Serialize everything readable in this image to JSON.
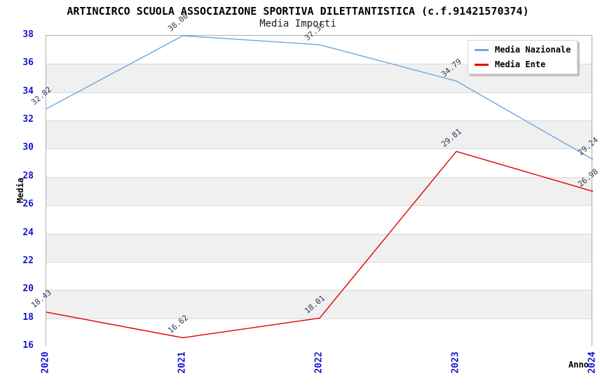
{
  "header": {
    "title": "ARTINCIRCO SCUOLA ASSOCIAZIONE SPORTIVA DILETTANTISTICA (c.f.91421570374)",
    "subtitle": "Media Importi"
  },
  "legend": {
    "items": [
      {
        "label": "Media Nazionale",
        "color": "#6fa8dc"
      },
      {
        "label": "Media Ente",
        "color": "#e00000"
      }
    ]
  },
  "chart_data": {
    "type": "line",
    "title": "ARTINCIRCO SCUOLA ASSOCIAZIONE SPORTIVA DILETTANTISTICA (c.f.91421570374)",
    "subtitle": "Media Importi",
    "categories": [
      "2020",
      "2021",
      "2022",
      "2023",
      "2024"
    ],
    "series": [
      {
        "name": "Media Nazionale",
        "color": "#6fa8dc",
        "values": [
          32.82,
          38.0,
          37.36,
          34.79,
          29.24
        ],
        "labels": [
          "32.82",
          "38.00",
          "37.36",
          "34.79",
          "29.24"
        ]
      },
      {
        "name": "Media Ente",
        "color": "#e00000",
        "values": [
          18.43,
          16.62,
          18.01,
          29.81,
          26.98
        ],
        "labels": [
          "18.43",
          "16.62",
          "18.01",
          "29.81",
          "26.98"
        ]
      }
    ],
    "xlabel": "Anno",
    "ylabel": "Media",
    "ylim": [
      16,
      38
    ],
    "y_tick_step": 2,
    "grid": "horizontal",
    "band_colors": [
      "#ffffff",
      "#f0f0f0"
    ],
    "legend_position": "top-right"
  },
  "colors": {
    "tick_label": "#1414cc",
    "point_label": "#333355",
    "grid_line": "#d9d9d9",
    "plot_border": "#adadad"
  }
}
